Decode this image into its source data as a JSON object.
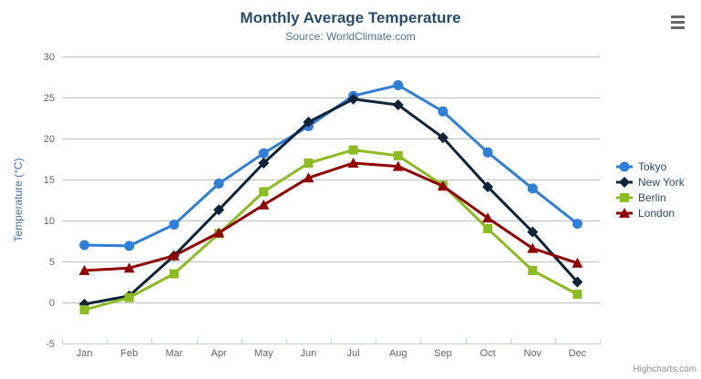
{
  "ui": {
    "credits": "Highcharts.com",
    "icons": {
      "context_menu": "hamburger-icon"
    },
    "colors": {
      "title": "#274b6d",
      "subtitle": "#4d759e",
      "axis_labels": "#666666",
      "y_axis_title": "#4572a7",
      "gridline": "#c0c0c0",
      "axis_line": "#c0d0e0",
      "legend_text": "#274b6d",
      "credits_text": "#909090"
    }
  },
  "chart_data": {
    "type": "line",
    "title": "Monthly Average Temperature",
    "subtitle": "Source: WorldClimate.com",
    "categories": [
      "Jan",
      "Feb",
      "Mar",
      "Apr",
      "May",
      "Jun",
      "Jul",
      "Aug",
      "Sep",
      "Oct",
      "Nov",
      "Dec"
    ],
    "series": [
      {
        "name": "Tokyo",
        "color": "#2f7ed8",
        "marker": "circle",
        "values": [
          7.0,
          6.9,
          9.5,
          14.5,
          18.2,
          21.5,
          25.2,
          26.5,
          23.3,
          18.3,
          13.9,
          9.6
        ]
      },
      {
        "name": "New York",
        "color": "#0d233a",
        "marker": "diamond",
        "values": [
          -0.2,
          0.8,
          5.7,
          11.3,
          17.0,
          22.0,
          24.8,
          24.1,
          20.1,
          14.1,
          8.6,
          2.5
        ]
      },
      {
        "name": "Berlin",
        "color": "#8bbc21",
        "marker": "square",
        "values": [
          -0.9,
          0.6,
          3.5,
          8.4,
          13.5,
          17.0,
          18.6,
          17.9,
          14.3,
          9.0,
          3.9,
          1.0
        ]
      },
      {
        "name": "London",
        "color": "#910000",
        "marker": "triangle",
        "values": [
          3.9,
          4.2,
          5.7,
          8.5,
          11.9,
          15.2,
          17.0,
          16.6,
          14.2,
          10.3,
          6.6,
          4.8
        ]
      }
    ],
    "xlabel": "",
    "ylabel": "Temperature (°C)",
    "ylim": [
      -5,
      30
    ],
    "yticks": [
      -5,
      0,
      5,
      10,
      15,
      20,
      25,
      30
    ],
    "grid": true,
    "legend_position": "right"
  }
}
